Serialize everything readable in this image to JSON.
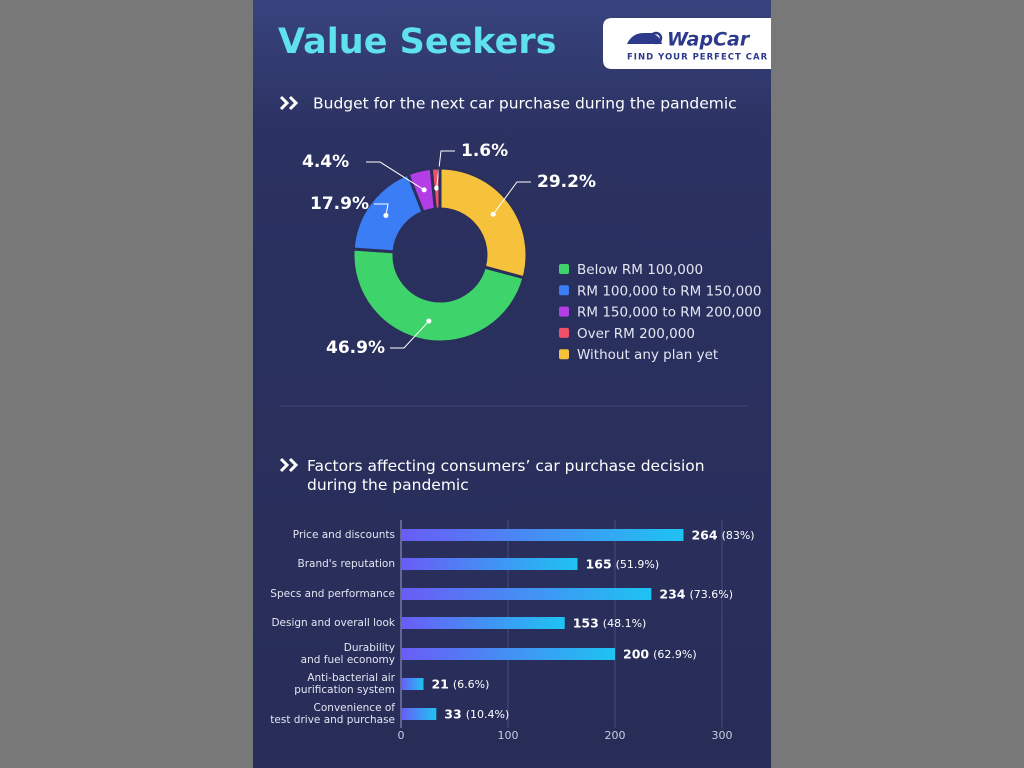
{
  "header": {
    "title": "Value Seekers",
    "logo": "WapCar",
    "tagline": "FIND YOUR PERFECT CAR"
  },
  "chart_data": [
    {
      "type": "donut",
      "title": "Budget for the next car purchase during the pandemic",
      "categories": [
        "Below RM 100,000",
        "RM 100,000 to RM 150,000",
        "RM 150,000 to RM 200,000",
        "Over RM 200,000",
        "Without any plan yet"
      ],
      "values": [
        46.9,
        17.9,
        4.4,
        1.6,
        29.2
      ],
      "value_labels": [
        "46.9%",
        "17.9%",
        "4.4%",
        "1.6%",
        "29.2%"
      ],
      "colors": [
        "#3fd46b",
        "#3a7df4",
        "#b43ee6",
        "#f2506a",
        "#f6c13b"
      ]
    },
    {
      "type": "hbar",
      "title": "Factors affecting consumers’ car purchase decision during the pandemic",
      "categories": [
        "Price and discounts",
        "Brand's reputation",
        "Specs and performance",
        "Design and overall look",
        "Durability\nand fuel economy",
        "Anti-bacterial air\npurification system",
        "Convenience of\ntest drive and purchase"
      ],
      "values": [
        264,
        165,
        234,
        153,
        200,
        21,
        33
      ],
      "share_labels": [
        "(83%)",
        "(51.9%)",
        "(73.6%)",
        "(48.1%)",
        "(62.9%)",
        "(6.6%)",
        "(10.4%)"
      ],
      "xlim": [
        0,
        300
      ],
      "xticks": [
        0,
        100,
        200,
        300
      ],
      "grid": true,
      "colors": [
        "#6a5cf6",
        "#1ec3f2"
      ]
    }
  ]
}
